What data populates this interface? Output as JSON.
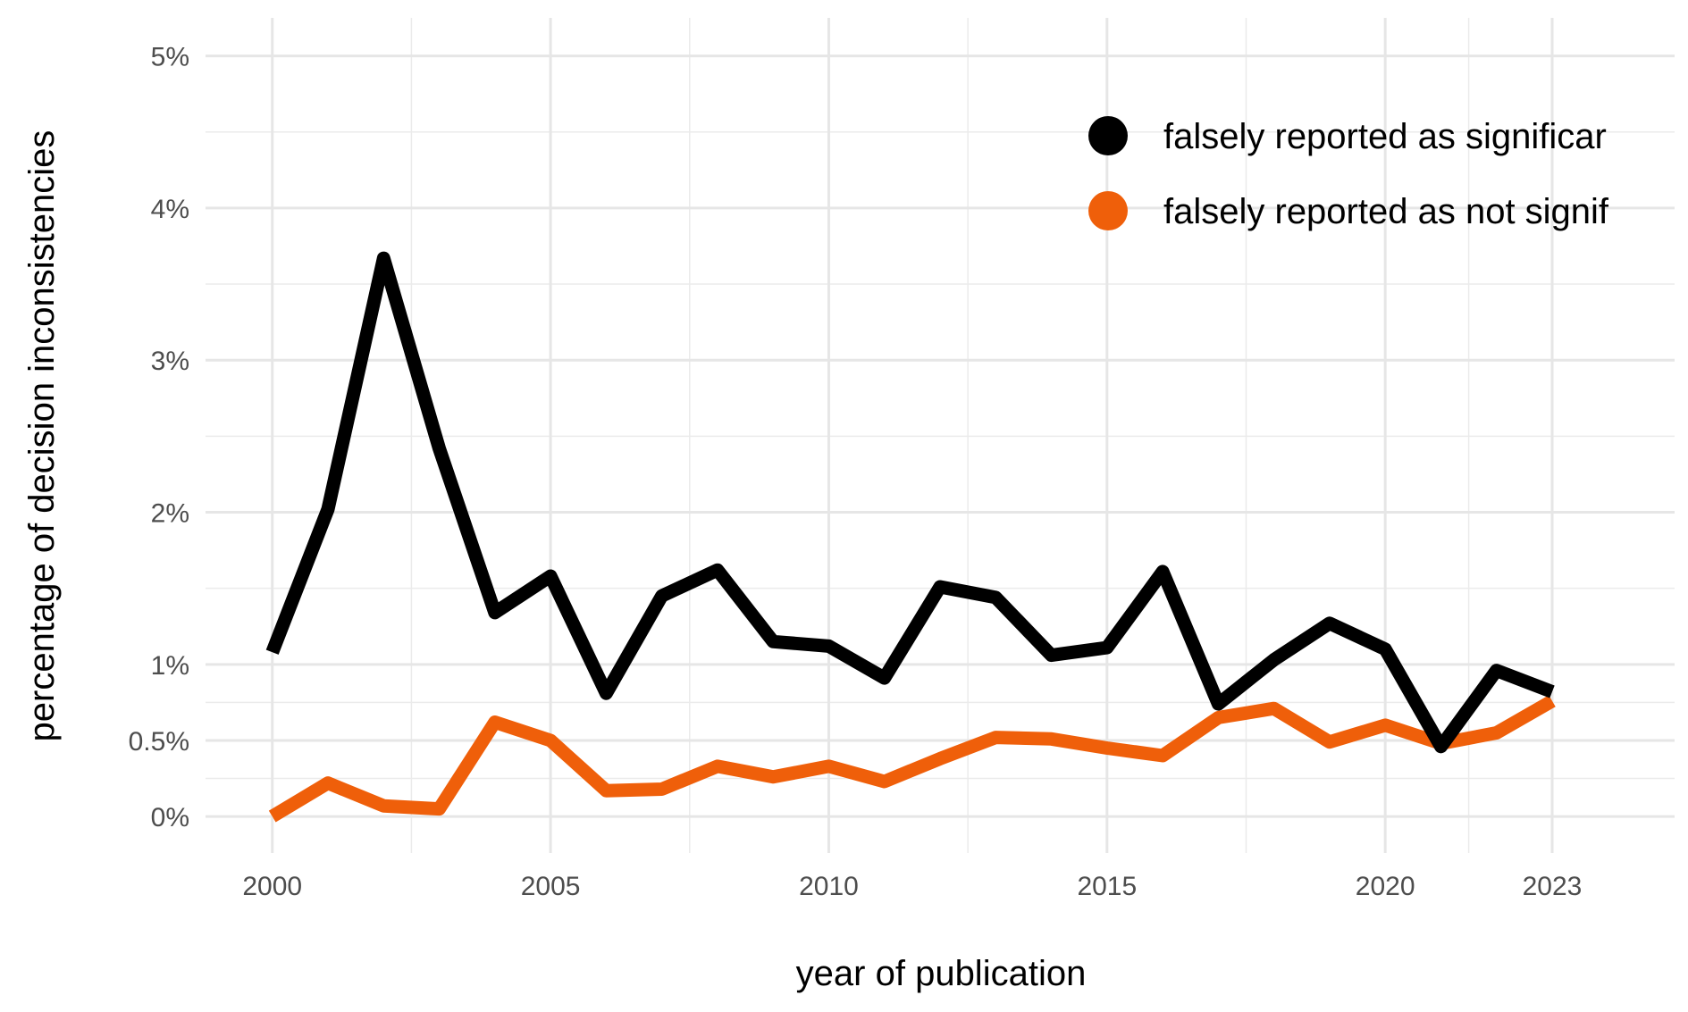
{
  "chart_data": {
    "type": "line",
    "title": "",
    "xlabel": "year of publication",
    "ylabel": "percentage of decision inconsistencies",
    "x": [
      2000,
      2001,
      2002,
      2003,
      2004,
      2005,
      2006,
      2007,
      2008,
      2009,
      2010,
      2011,
      2012,
      2013,
      2014,
      2015,
      2016,
      2017,
      2018,
      2019,
      2020,
      2021,
      2022,
      2023
    ],
    "xlim": [
      1998.8,
      2025.2
    ],
    "ylim": [
      -0.24,
      5.25
    ],
    "x_ticks": [
      2000,
      2005,
      2010,
      2015,
      2020,
      2023
    ],
    "x_tick_labels": [
      "2000",
      "2005",
      "2010",
      "2015",
      "2020",
      "2023"
    ],
    "y_ticks": [
      0,
      0.5,
      1,
      2,
      3,
      4,
      5
    ],
    "y_tick_labels": [
      "0%",
      "0.5%",
      "1%",
      "2%",
      "3%",
      "4%",
      "5%"
    ],
    "grid": true,
    "legend_position": "top-right",
    "series": [
      {
        "name": "falsely reported as significant",
        "color": "#000000",
        "values": [
          1.08,
          2.02,
          3.67,
          2.42,
          1.34,
          1.58,
          0.81,
          1.45,
          1.62,
          1.15,
          1.12,
          0.91,
          1.51,
          1.44,
          1.06,
          1.11,
          1.61,
          0.74,
          1.03,
          1.27,
          1.1,
          0.46,
          0.96,
          0.82
        ],
        "legend_label": "falsely reported as significar"
      },
      {
        "name": "falsely reported as not significant",
        "color": "#ef5f0a",
        "values": [
          0.0,
          0.22,
          0.07,
          0.05,
          0.62,
          0.5,
          0.17,
          0.18,
          0.33,
          0.26,
          0.33,
          0.23,
          0.38,
          0.52,
          0.51,
          0.45,
          0.4,
          0.65,
          0.71,
          0.49,
          0.6,
          0.48,
          0.55,
          0.76
        ],
        "legend_label": "falsely reported as not signif"
      }
    ]
  }
}
